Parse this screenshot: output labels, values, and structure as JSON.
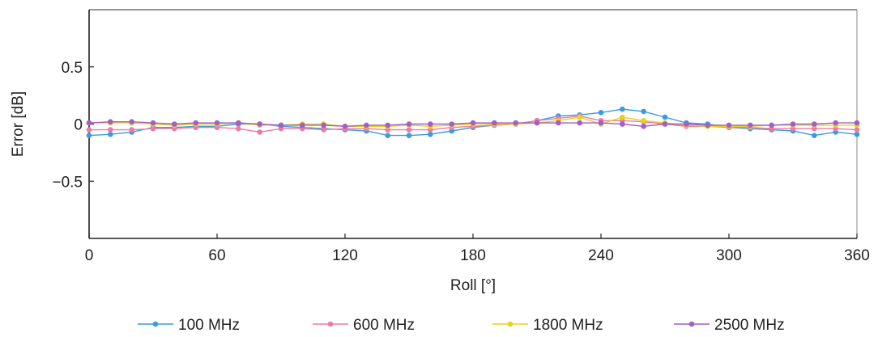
{
  "chart_data": {
    "type": "line",
    "xlabel": "Roll [°]",
    "ylabel": "Error [dB]",
    "xlim": [
      0,
      360
    ],
    "ylim": [
      -1.0,
      1.0
    ],
    "xticks": [
      0,
      60,
      120,
      180,
      240,
      300,
      360
    ],
    "xtick_labels": [
      "0",
      "60",
      "120",
      "180",
      "240",
      "300",
      "360"
    ],
    "yticks": [
      0.5,
      0,
      -0.5
    ],
    "ytick_labels": [
      "0.5",
      "0",
      "−0.5"
    ],
    "grid": false,
    "legend_position": "bottom",
    "x": [
      0,
      10,
      20,
      30,
      40,
      50,
      60,
      70,
      80,
      90,
      100,
      110,
      120,
      130,
      140,
      150,
      160,
      170,
      180,
      190,
      200,
      210,
      220,
      230,
      240,
      250,
      260,
      270,
      280,
      290,
      300,
      310,
      320,
      330,
      340,
      350,
      360
    ],
    "series": [
      {
        "name": "100 MHz",
        "color": "#3b9be0",
        "values": [
          -0.1,
          -0.09,
          -0.07,
          -0.03,
          -0.03,
          -0.02,
          -0.02,
          0.0,
          0.0,
          -0.02,
          -0.03,
          -0.04,
          -0.05,
          -0.06,
          -0.1,
          -0.1,
          -0.09,
          -0.06,
          -0.03,
          -0.01,
          0.0,
          0.03,
          0.07,
          0.08,
          0.1,
          0.13,
          0.11,
          0.06,
          0.01,
          0.0,
          -0.03,
          -0.04,
          -0.05,
          -0.06,
          -0.1,
          -0.07,
          -0.09
        ]
      },
      {
        "name": "600 MHz",
        "color": "#ec7ba6",
        "values": [
          -0.05,
          -0.05,
          -0.05,
          -0.04,
          -0.04,
          -0.03,
          -0.03,
          -0.04,
          -0.07,
          -0.04,
          -0.04,
          -0.05,
          -0.04,
          -0.04,
          -0.05,
          -0.05,
          -0.05,
          -0.03,
          -0.02,
          -0.01,
          0.0,
          0.03,
          0.05,
          0.07,
          0.03,
          0.03,
          0.02,
          0.0,
          -0.02,
          -0.02,
          -0.03,
          -0.03,
          -0.04,
          -0.04,
          -0.04,
          -0.04,
          -0.05
        ]
      },
      {
        "name": "1800 MHz",
        "color": "#e8d21a",
        "values": [
          0.01,
          0.01,
          0.01,
          0.0,
          -0.01,
          0.0,
          0.0,
          0.01,
          -0.01,
          -0.01,
          0.0,
          0.0,
          -0.02,
          -0.02,
          -0.02,
          -0.01,
          -0.02,
          -0.01,
          0.0,
          0.0,
          0.0,
          0.01,
          0.03,
          0.06,
          0.0,
          0.06,
          0.03,
          0.01,
          -0.01,
          -0.02,
          -0.02,
          -0.02,
          -0.01,
          -0.01,
          -0.01,
          -0.01,
          -0.01
        ]
      },
      {
        "name": "2500 MHz",
        "color": "#a45ec6",
        "values": [
          0.01,
          0.02,
          0.02,
          0.01,
          0.0,
          0.01,
          0.01,
          0.01,
          0.0,
          -0.01,
          -0.01,
          -0.01,
          -0.02,
          -0.01,
          -0.01,
          0.0,
          0.0,
          0.0,
          0.01,
          0.01,
          0.01,
          0.01,
          0.01,
          0.01,
          0.01,
          0.0,
          -0.02,
          0.0,
          0.0,
          -0.01,
          -0.01,
          -0.01,
          -0.01,
          0.0,
          0.0,
          0.01,
          0.01
        ]
      }
    ]
  }
}
